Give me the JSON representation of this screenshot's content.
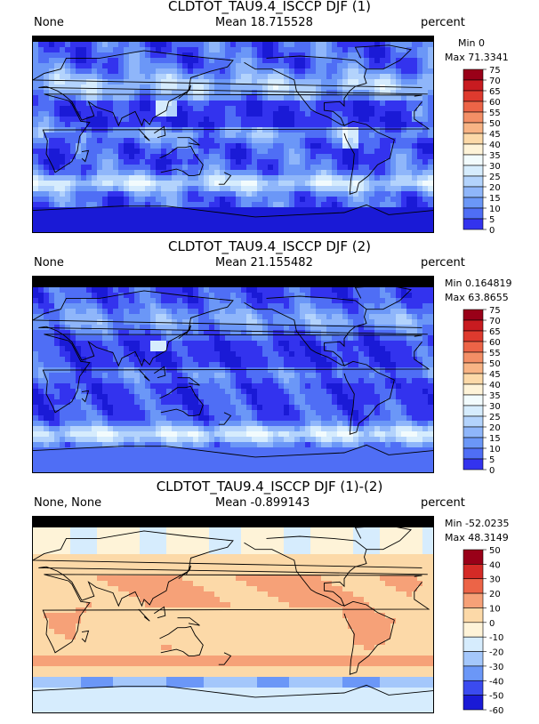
{
  "colors": {
    "scale_abs": [
      "#1a1ad6",
      "#3333ee",
      "#4f6ef5",
      "#6b97f7",
      "#8fb6fa",
      "#b3d3fc",
      "#d6ecfd",
      "#f2fbfd",
      "#fef3d8",
      "#fcd9a8",
      "#f8b485",
      "#f38f66",
      "#ec6447",
      "#de3a2e",
      "#c81b20",
      "#990018"
    ],
    "scale_diff": [
      "#1a1ad6",
      "#3b4bf0",
      "#6b97f7",
      "#a4c7fb",
      "#d6ecfd",
      "#fef3d8",
      "#fcd9a8",
      "#f6a178",
      "#ec6447",
      "#d42a26",
      "#990018"
    ],
    "nodata": "#000000",
    "coast": "#000000"
  },
  "panels": [
    {
      "title": "CLDTOT_TAU9.4_ISCCP DJF (1)",
      "left_label": "None",
      "mean": "Mean 18.715528",
      "units": "percent",
      "min": "Min 0",
      "max": "Max 71.3341",
      "colorbar_ticks": [
        "75",
        "70",
        "65",
        "60",
        "55",
        "50",
        "45",
        "40",
        "35",
        "30",
        "25",
        "20",
        "15",
        "10",
        "5",
        "0"
      ],
      "scale": "abs",
      "field": "model"
    },
    {
      "title": "CLDTOT_TAU9.4_ISCCP DJF (2)",
      "left_label": "None",
      "mean": "Mean 21.155482",
      "units": "percent",
      "min": "Min 0.164819",
      "max": "Max 63.8655",
      "colorbar_ticks": [
        "75",
        "70",
        "65",
        "60",
        "55",
        "50",
        "45",
        "40",
        "35",
        "30",
        "25",
        "20",
        "15",
        "10",
        "5",
        "0"
      ],
      "scale": "abs",
      "field": "obs"
    },
    {
      "title": "CLDTOT_TAU9.4_ISCCP DJF (1)-(2)",
      "left_label": "None, None",
      "mean": "Mean -0.899143",
      "units": "percent",
      "min": "Min -52.0235",
      "max": "Max 48.3149",
      "colorbar_ticks": [
        "50",
        "40",
        "30",
        "20",
        "10",
        "0",
        "-10",
        "-20",
        "-30",
        "-40",
        "-50",
        "-60"
      ],
      "scale": "diff",
      "field": "diff"
    }
  ],
  "chart_data": [
    {
      "type": "heatmap",
      "title": "CLDTOT_TAU9.4_ISCCP DJF (1)",
      "units": "percent",
      "mean": 18.715528,
      "min": 0,
      "max": 71.3341,
      "colorbar_levels": [
        0,
        5,
        10,
        15,
        20,
        25,
        30,
        35,
        40,
        45,
        50,
        55,
        60,
        65,
        70,
        75
      ],
      "zonal_profile_approx": [
        {
          "lat": 80,
          "value": 15
        },
        {
          "lat": 60,
          "value": 28
        },
        {
          "lat": 45,
          "value": 30
        },
        {
          "lat": 30,
          "value": 22
        },
        {
          "lat": 15,
          "value": 10
        },
        {
          "lat": 0,
          "value": 15
        },
        {
          "lat": -15,
          "value": 18
        },
        {
          "lat": -30,
          "value": 15
        },
        {
          "lat": -45,
          "value": 32
        },
        {
          "lat": -60,
          "value": 15
        },
        {
          "lat": -75,
          "value": 4
        }
      ],
      "grid": false
    },
    {
      "type": "heatmap",
      "title": "CLDTOT_TAU9.4_ISCCP DJF (2)",
      "units": "percent",
      "mean": 21.155482,
      "min": 0.164819,
      "max": 63.8655,
      "colorbar_levels": [
        0,
        5,
        10,
        15,
        20,
        25,
        30,
        35,
        40,
        45,
        50,
        55,
        60,
        65,
        70,
        75
      ],
      "zonal_profile_approx": [
        {
          "lat": 80,
          "value": 0
        },
        {
          "lat": 60,
          "value": 20
        },
        {
          "lat": 45,
          "value": 22
        },
        {
          "lat": 30,
          "value": 14
        },
        {
          "lat": 15,
          "value": 12
        },
        {
          "lat": 0,
          "value": 16
        },
        {
          "lat": -15,
          "value": 18
        },
        {
          "lat": -30,
          "value": 17
        },
        {
          "lat": -45,
          "value": 30
        },
        {
          "lat": -60,
          "value": 35
        },
        {
          "lat": -75,
          "value": 10
        }
      ],
      "grid": false
    },
    {
      "type": "heatmap",
      "title": "CLDTOT_TAU9.4_ISCCP DJF (1)-(2)",
      "units": "percent",
      "mean": -0.899143,
      "min": -52.0235,
      "max": 48.3149,
      "colorbar_levels": [
        -60,
        -50,
        -40,
        -30,
        -20,
        -10,
        0,
        10,
        20,
        30,
        40,
        50
      ],
      "zonal_profile_approx": [
        {
          "lat": 60,
          "value": 5
        },
        {
          "lat": 30,
          "value": 4
        },
        {
          "lat": 15,
          "value": 2
        },
        {
          "lat": 0,
          "value": 3
        },
        {
          "lat": -20,
          "value": 4
        },
        {
          "lat": -45,
          "value": 8
        },
        {
          "lat": -60,
          "value": -25
        },
        {
          "lat": -75,
          "value": -8
        }
      ],
      "grid": false
    }
  ]
}
